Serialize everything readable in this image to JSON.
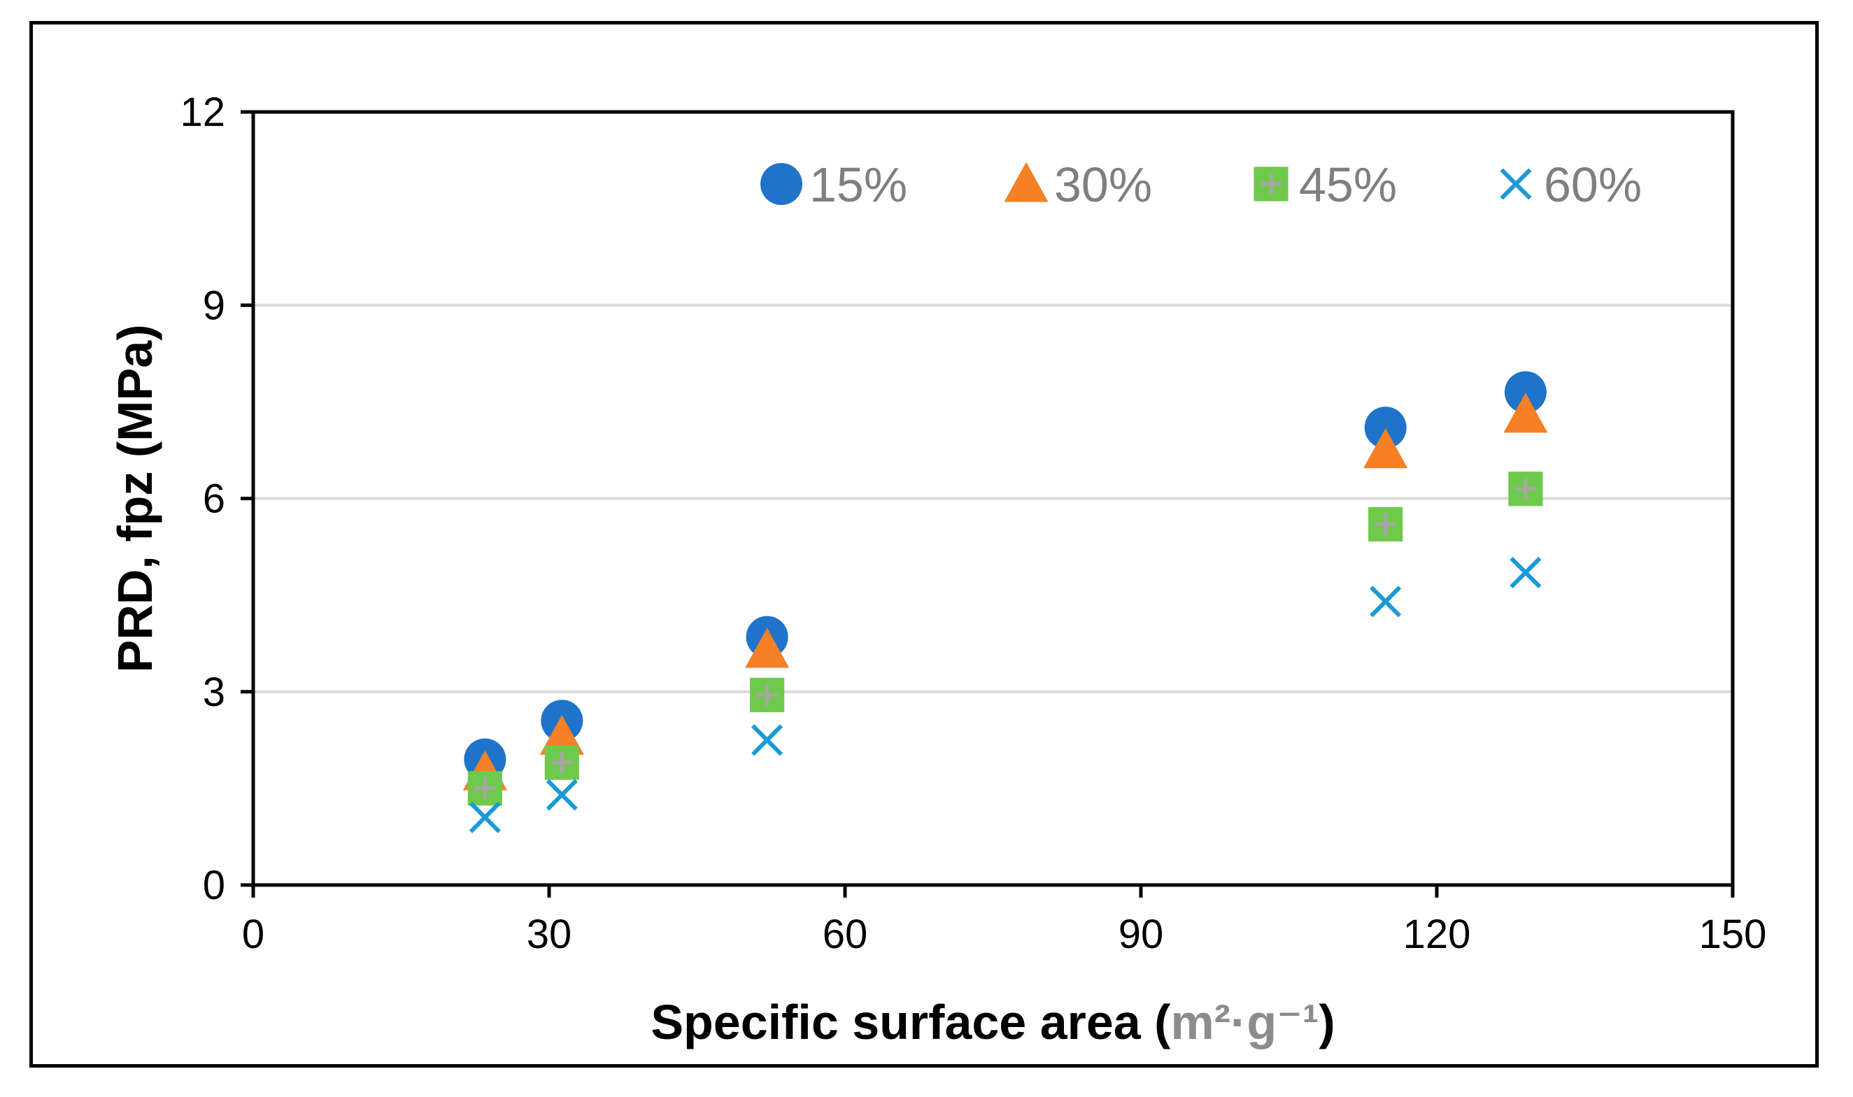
{
  "chart_data": {
    "type": "scatter",
    "title": "",
    "xlabel_main": "Specific surface area (",
    "xlabel_unit": "m²·g⁻¹",
    "xlabel_close": ")",
    "ylabel": "PRD, fpz (MPa)",
    "xlim": [
      0,
      150
    ],
    "ylim": [
      0,
      12
    ],
    "xticks": [
      0,
      30,
      60,
      90,
      120,
      150
    ],
    "yticks": [
      0,
      3,
      6,
      9,
      12
    ],
    "x_tick_labels": [
      "0",
      "30",
      "60",
      "90",
      "120",
      "150"
    ],
    "y_tick_labels": [
      "0",
      "3",
      "6",
      "9",
      "12"
    ],
    "grid": "horizontal",
    "legend_position": "top-inside",
    "x": [
      23.5,
      31.3,
      52.1,
      114.8,
      129.0
    ],
    "series": [
      {
        "name": "15%",
        "marker": "circle",
        "color": "#1f73c8",
        "values": [
          1.95,
          2.55,
          3.85,
          7.1,
          7.65
        ]
      },
      {
        "name": "30%",
        "marker": "triangle",
        "color": "#f58025",
        "values": [
          1.75,
          2.3,
          3.65,
          6.75,
          7.3
        ]
      },
      {
        "name": "45%",
        "marker": "square-plus",
        "color": "#6fca4c",
        "values": [
          1.5,
          1.9,
          2.95,
          5.6,
          6.15
        ]
      },
      {
        "name": "60%",
        "marker": "x",
        "color": "#1a9ad6",
        "values": [
          1.05,
          1.4,
          2.25,
          4.4,
          4.85
        ]
      }
    ]
  }
}
